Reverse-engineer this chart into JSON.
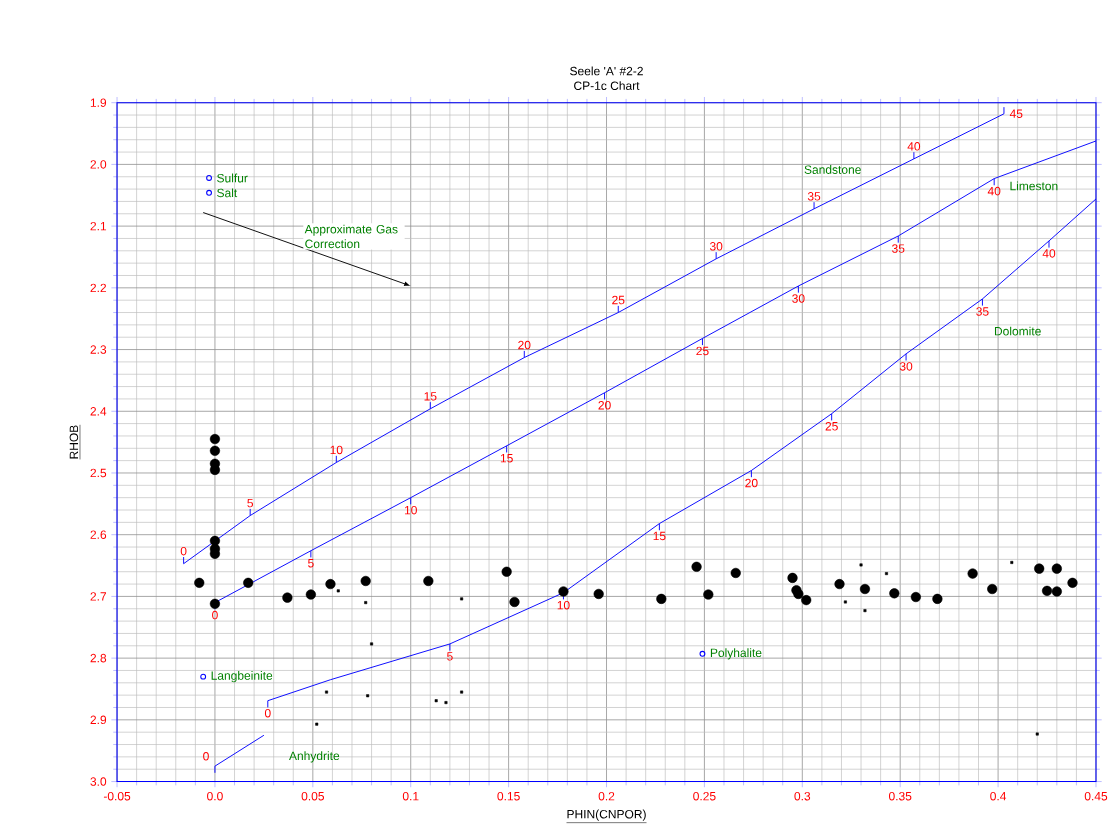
{
  "chart_data": {
    "type": "scatter",
    "title": "Seele 'A' #2-2",
    "subtitle": "CP-1c Chart",
    "xlabel": "PHIN(CNPOR)",
    "ylabel": "RHOB",
    "xlim": [
      -0.05,
      0.45
    ],
    "ylim": [
      3.0,
      1.9
    ],
    "xticks": [
      -0.05,
      {
        "value": 0,
        "label": "0.0"
      },
      0.05,
      0.1,
      0.15,
      0.2,
      0.25,
      0.3,
      0.35,
      0.4,
      0.45
    ],
    "yticks": [
      1.9,
      {
        "value": 2.0,
        "label": "2.0"
      },
      2.1,
      2.2,
      2.3,
      2.4,
      2.5,
      2.6,
      2.7,
      2.8,
      2.9,
      {
        "value": 3.0,
        "label": "3.0"
      }
    ],
    "grid": true,
    "annotations": [
      "Approximate Gas Correction",
      {
        "text": "0",
        "x": -0.016,
        "y": 2.647
      },
      {
        "text": "5",
        "x": 0.018,
        "y": 2.569
      },
      {
        "text": "10",
        "x": 0.062,
        "y": 2.483
      },
      {
        "text": "15",
        "x": 0.11,
        "y": 2.396
      },
      {
        "text": "20",
        "x": 0.158,
        "y": 2.313
      },
      {
        "text": "25",
        "x": 0.206,
        "y": 2.24
      },
      {
        "text": "30",
        "x": 0.256,
        "y": 2.153
      },
      {
        "text": "35",
        "x": 0.306,
        "y": 2.072
      },
      {
        "text": "40",
        "x": 0.357,
        "y": 1.991
      },
      {
        "text": "45",
        "x": 0.403,
        "y": 1.918
      },
      {
        "text": "0",
        "x": 0,
        "y": 2.71
      },
      {
        "text": "5",
        "x": 0.049,
        "y": 2.626
      },
      {
        "text": "10",
        "x": 0.1,
        "y": 2.54
      },
      {
        "text": "15",
        "x": 0.149,
        "y": 2.456
      },
      {
        "text": "20",
        "x": 0.199,
        "y": 2.37
      },
      {
        "text": "25",
        "x": 0.249,
        "y": 2.282
      },
      {
        "text": "30",
        "x": 0.298,
        "y": 2.197
      },
      {
        "text": "35",
        "x": 0.349,
        "y": 2.116
      },
      {
        "text": "40",
        "x": 0.398,
        "y": 2.023
      },
      {
        "text": "0",
        "x": 0.027,
        "y": 2.869
      },
      {
        "text": "5",
        "x": 0.12,
        "y": 2.777
      },
      {
        "text": "10",
        "x": 0.178,
        "y": 2.694
      },
      {
        "text": "15",
        "x": 0.227,
        "y": 2.582
      },
      {
        "text": "20",
        "x": 0.274,
        "y": 2.496
      },
      {
        "text": "25",
        "x": 0.315,
        "y": 2.404
      },
      {
        "text": "30",
        "x": 0.353,
        "y": 2.307
      },
      {
        "text": "35",
        "x": 0.392,
        "y": 2.218
      },
      {
        "text": "40",
        "x": 0.426,
        "y": 2.124
      },
      {
        "text": "0",
        "x": 0,
        "y": 2.975
      }
    ],
    "series": [
      {
        "name": "Sandstone",
        "type": "line",
        "color": "#0000ff",
        "marker": "none",
        "x": [
          -0.016,
          0.018,
          0.062,
          0.11,
          0.158,
          0.206,
          0.256,
          0.306,
          0.357,
          0.403
        ],
        "values": [
          2.647,
          2.569,
          2.483,
          2.396,
          2.313,
          2.24,
          2.153,
          2.072,
          1.991,
          1.918
        ]
      },
      {
        "name": "Limeston",
        "type": "line",
        "color": "#0000ff",
        "marker": "none",
        "x": [
          0,
          0.049,
          0.1,
          0.149,
          0.199,
          0.249,
          0.298,
          0.349,
          0.398,
          0.45
        ],
        "values": [
          2.71,
          2.626,
          2.54,
          2.456,
          2.37,
          2.282,
          2.197,
          2.116,
          2.023,
          1.962
        ]
      },
      {
        "name": "Dolomite",
        "type": "line",
        "color": "#0000ff",
        "marker": "none",
        "x": [
          0.027,
          0.059,
          0.12,
          0.178,
          0.227,
          0.274,
          0.315,
          0.353,
          0.392,
          0.426,
          0.45
        ],
        "values": [
          2.869,
          2.835,
          2.777,
          2.694,
          2.582,
          2.496,
          2.404,
          2.307,
          2.218,
          2.124,
          2.056
        ]
      },
      {
        "name": "Anhydrite",
        "type": "line",
        "color": "#0000ff",
        "marker": "none",
        "x": [
          0,
          0.025
        ],
        "values": [
          2.975,
          2.925
        ]
      },
      {
        "name": "Sulfur",
        "color": "#0000ff",
        "marker": "circle",
        "x": [
          -0.003
        ],
        "values": [
          2.022
        ]
      },
      {
        "name": "Salt",
        "color": "#0000ff",
        "marker": "circle",
        "x": [
          -0.003
        ],
        "values": [
          2.046
        ]
      },
      {
        "name": "Langbeinite",
        "color": "#0000ff",
        "marker": "circle",
        "x": [
          -0.006
        ],
        "values": [
          2.83
        ]
      },
      {
        "name": "Polyhalite",
        "color": "#0000ff",
        "marker": "circle",
        "x": [
          0.249
        ],
        "values": [
          2.793
        ]
      },
      {
        "color": "#000000",
        "marker": "circle",
        "x": [
          0,
          0,
          0,
          0,
          0,
          0,
          0,
          0,
          -0.008,
          0.017,
          0.037,
          0.049,
          0.059,
          0.077,
          0.109,
          0.149,
          0.153,
          0.178,
          0.196,
          0.228,
          0.246,
          0.252,
          0.266,
          0.295,
          0.297,
          0.298,
          0.302,
          0.319,
          0.332,
          0.347,
          0.358,
          0.369,
          0.387,
          0.397,
          0.421,
          0.43,
          0.425,
          0.43,
          0.438
        ],
        "values": [
          2.445,
          2.464,
          2.485,
          2.495,
          2.61,
          2.623,
          2.631,
          2.712,
          2.678,
          2.678,
          2.702,
          2.697,
          2.68,
          2.675,
          2.675,
          2.66,
          2.709,
          2.692,
          2.696,
          2.704,
          2.652,
          2.697,
          2.662,
          2.67,
          2.69,
          2.696,
          2.706,
          2.68,
          2.688,
          2.695,
          2.701,
          2.704,
          2.663,
          2.688,
          2.655,
          2.655,
          2.691,
          2.692,
          2.678
        ]
      },
      {
        "color": "#000000",
        "marker": "square",
        "x": [
          0.063,
          0.077,
          0.126,
          0.08,
          0.057,
          0.078,
          0.113,
          0.118,
          0.126,
          0.052,
          0.33,
          0.343,
          0.322,
          0.332,
          0.407,
          0.42
        ],
        "values": [
          2.691,
          2.71,
          2.704,
          2.777,
          2.855,
          2.861,
          2.869,
          2.872,
          2.855,
          2.907,
          2.649,
          2.663,
          2.709,
          2.723,
          2.645,
          2.923
        ]
      }
    ]
  }
}
